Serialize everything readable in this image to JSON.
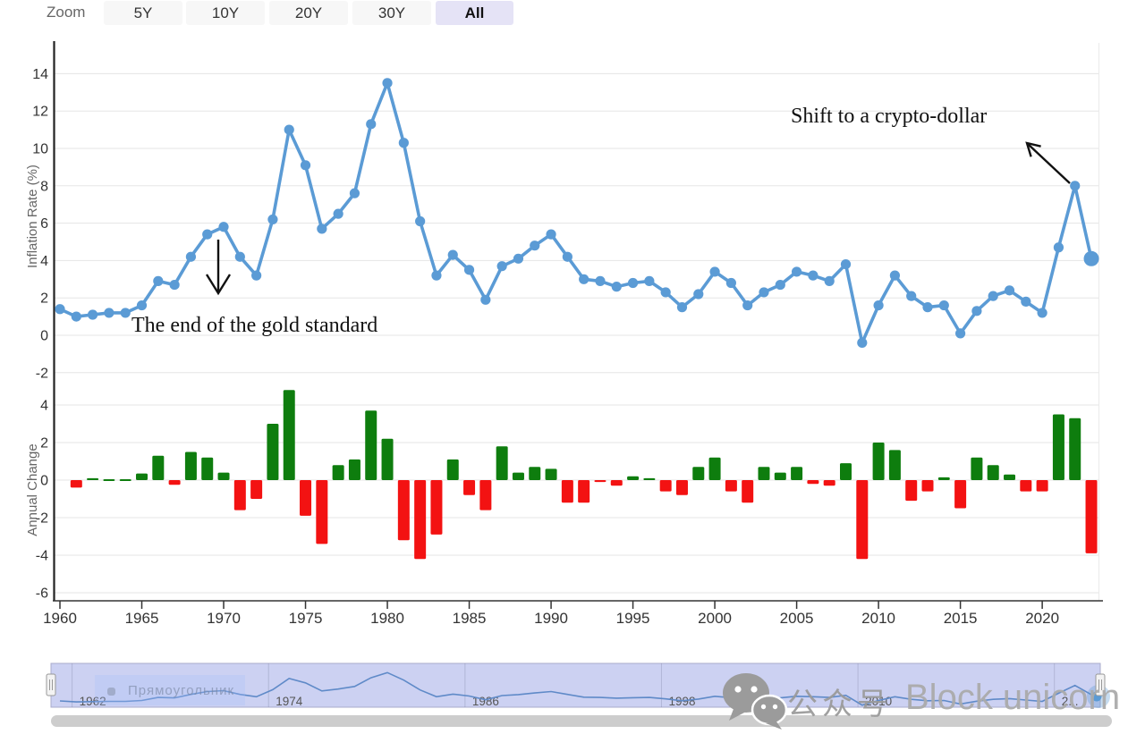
{
  "toolbar": {
    "zoom_label": "Zoom",
    "buttons": [
      {
        "label": "5Y",
        "active": false
      },
      {
        "label": "10Y",
        "active": false
      },
      {
        "label": "20Y",
        "active": false
      },
      {
        "label": "30Y",
        "active": false
      },
      {
        "label": "All",
        "active": true
      }
    ],
    "active_bg": "#e5e3f6",
    "inactive_bg": "#f7f7f7"
  },
  "chart_data": [
    {
      "type": "line",
      "name": "Inflation Rate",
      "ylabel": "Inflation Rate (%)",
      "ylim": [
        -3,
        15
      ],
      "yticks": [
        14,
        12,
        10,
        8,
        6,
        4,
        2,
        0,
        -2
      ],
      "grid": true,
      "color": "#5b9bd5",
      "x": [
        1960,
        1961,
        1962,
        1963,
        1964,
        1965,
        1966,
        1967,
        1968,
        1969,
        1970,
        1971,
        1972,
        1973,
        1974,
        1975,
        1976,
        1977,
        1978,
        1979,
        1980,
        1981,
        1982,
        1983,
        1984,
        1985,
        1986,
        1987,
        1988,
        1989,
        1990,
        1991,
        1992,
        1993,
        1994,
        1995,
        1996,
        1997,
        1998,
        1999,
        2000,
        2001,
        2002,
        2003,
        2004,
        2005,
        2006,
        2007,
        2008,
        2009,
        2010,
        2011,
        2012,
        2013,
        2014,
        2015,
        2016,
        2017,
        2018,
        2019,
        2020,
        2021,
        2022,
        2023
      ],
      "values": [
        1.4,
        1.0,
        1.1,
        1.2,
        1.2,
        1.6,
        2.9,
        2.7,
        4.2,
        5.4,
        5.8,
        4.2,
        3.2,
        6.2,
        11.0,
        9.1,
        5.7,
        6.5,
        7.6,
        11.3,
        13.5,
        10.3,
        6.1,
        3.2,
        4.3,
        3.5,
        1.9,
        3.7,
        4.1,
        4.8,
        5.4,
        4.2,
        3.0,
        2.9,
        2.6,
        2.8,
        2.9,
        2.3,
        1.5,
        2.2,
        3.4,
        2.8,
        1.6,
        2.3,
        2.7,
        3.4,
        3.2,
        2.9,
        3.8,
        -0.4,
        1.6,
        3.2,
        2.1,
        1.5,
        1.6,
        0.1,
        1.3,
        2.1,
        2.4,
        1.8,
        1.2,
        4.7,
        8.0,
        4.1
      ],
      "annotations": [
        {
          "text": "The end of the gold standard",
          "target_year": 1970,
          "target_value": 5.8
        },
        {
          "text": "Shift to a crypto-dollar",
          "target_year": 2022,
          "target_value": 8.0
        }
      ]
    },
    {
      "type": "bar",
      "name": "Annual Change",
      "ylabel": "Annual Change",
      "ylim": [
        -6.5,
        5
      ],
      "yticks": [
        4,
        2,
        0,
        -2,
        -4,
        -6
      ],
      "grid": true,
      "positive_color": "#0e7d0e",
      "negative_color": "#f31212",
      "x": [
        1961,
        1962,
        1963,
        1964,
        1965,
        1966,
        1967,
        1968,
        1969,
        1970,
        1971,
        1972,
        1973,
        1974,
        1975,
        1976,
        1977,
        1978,
        1979,
        1980,
        1981,
        1982,
        1983,
        1984,
        1985,
        1986,
        1987,
        1988,
        1989,
        1990,
        1991,
        1992,
        1993,
        1994,
        1995,
        1996,
        1997,
        1998,
        1999,
        2000,
        2001,
        2002,
        2003,
        2004,
        2005,
        2006,
        2007,
        2008,
        2009,
        2010,
        2011,
        2012,
        2013,
        2014,
        2015,
        2016,
        2017,
        2018,
        2019,
        2020,
        2021,
        2022,
        2023
      ],
      "values": [
        -0.4,
        0.1,
        0.05,
        0.05,
        0.35,
        1.3,
        -0.25,
        1.5,
        1.2,
        0.4,
        -1.6,
        -1.0,
        3.0,
        4.8,
        -1.9,
        -3.4,
        0.8,
        1.1,
        3.7,
        2.2,
        -3.2,
        -4.2,
        -2.9,
        1.1,
        -0.8,
        -1.6,
        1.8,
        0.4,
        0.7,
        0.6,
        -1.2,
        -1.2,
        -0.1,
        -0.3,
        0.2,
        0.1,
        -0.6,
        -0.8,
        0.7,
        1.2,
        -0.6,
        -1.2,
        0.7,
        0.4,
        0.7,
        -0.2,
        -0.3,
        0.9,
        -4.2,
        2.0,
        1.6,
        -1.1,
        -0.6,
        0.15,
        -1.5,
        1.2,
        0.8,
        0.3,
        -0.6,
        -0.6,
        3.5,
        3.3,
        -3.9
      ]
    }
  ],
  "xaxis": {
    "tick_years": [
      1960,
      1965,
      1970,
      1975,
      1980,
      1985,
      1990,
      1995,
      2000,
      2005,
      2010,
      2015,
      2020
    ]
  },
  "navigator": {
    "labels": [
      {
        "year": 1962,
        "label": "1962"
      },
      {
        "year": 1974,
        "label": "1974"
      },
      {
        "year": 1986,
        "label": "1986"
      },
      {
        "year": 1998,
        "label": "1998"
      },
      {
        "year": 2010,
        "label": "2010"
      },
      {
        "year": 2022,
        "label": "2..."
      }
    ],
    "mask_color": "#ccd1f2",
    "line_color": "#5f8ac8"
  },
  "scrollbar": {
    "color": "#cdcdcd"
  },
  "watermarks": {
    "tool_label": "Прямоугольник",
    "wechat_label": "公众号",
    "brand": "Block unicorn",
    "wechat_icon": "wechat-logo",
    "color": "#9b9b9b"
  }
}
